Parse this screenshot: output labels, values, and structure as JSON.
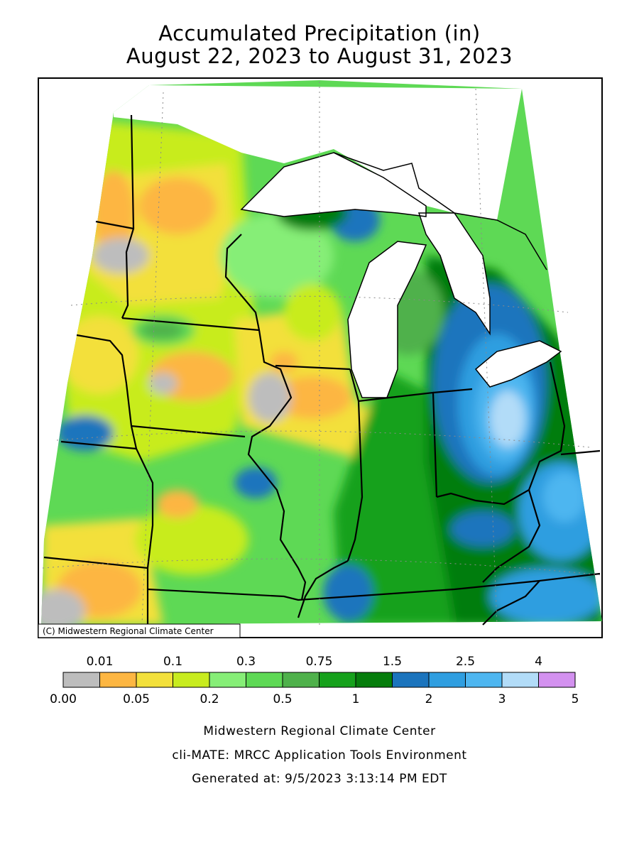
{
  "title": {
    "line1": "Accumulated Precipitation (in)",
    "line2": "August 22, 2023 to August 31, 2023"
  },
  "map": {
    "credit": "(C) Midwestern Regional Climate Center"
  },
  "legend": {
    "upper_labels": [
      "0.01",
      "0.1",
      "0.3",
      "0.75",
      "1.5",
      "2.5",
      "4"
    ],
    "lower_labels": [
      "0.00",
      "0.05",
      "0.2",
      "0.5",
      "1",
      "2",
      "3",
      "5"
    ],
    "bins": [
      {
        "color": "#bdbdbd"
      },
      {
        "color": "#fdb642"
      },
      {
        "color": "#f3e03b"
      },
      {
        "color": "#c8ec1f"
      },
      {
        "color": "#86ee77"
      },
      {
        "color": "#5ed955"
      },
      {
        "color": "#4fb14b"
      },
      {
        "color": "#16a11c"
      },
      {
        "color": "#067d0c"
      },
      {
        "color": "#1b74bd"
      },
      {
        "color": "#2f9ee0"
      },
      {
        "color": "#4eb6f0"
      },
      {
        "color": "#b2dcf8"
      },
      {
        "color": "#d391ef"
      }
    ]
  },
  "footer": {
    "line1": "Midwestern Regional Climate Center",
    "line2": "cli-MATE: MRCC Application Tools Environment",
    "line3": "Generated at: 9/5/2023 3:13:14 PM EDT"
  }
}
